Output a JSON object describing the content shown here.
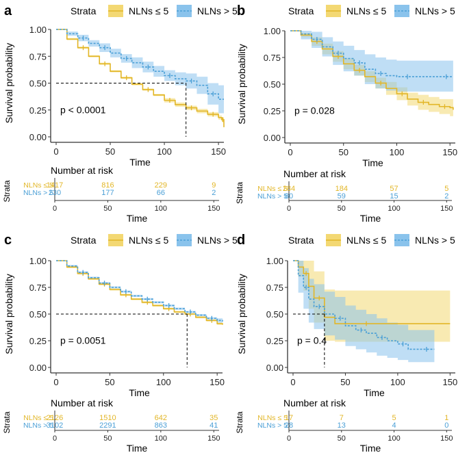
{
  "legend": {
    "title": "Strata",
    "label_a": "NLNs ≤ 5",
    "label_b": "NLNs > 5"
  },
  "labels": {
    "y_axis": "Survival probability",
    "x_axis": "Time",
    "risk_title": "Number at risk",
    "strata": "Strata"
  },
  "colors": {
    "a": "#E2B627",
    "b": "#4A9FD6",
    "fill_a": "#F3D873",
    "fill_b": "#8AC3EC",
    "axis": "#333333"
  },
  "chart_data": [
    {
      "panel": "a",
      "type": "line",
      "pvalue": "p < 0.0001",
      "xlim": [
        0,
        155
      ],
      "ylim": [
        0,
        1
      ],
      "x_ticks": [
        0,
        50,
        100,
        150
      ],
      "y_ticks": [
        "0.00",
        "0.25",
        "0.50",
        "0.75",
        "1.00"
      ],
      "median": {
        "value": 0.5,
        "times": [
          120
        ]
      },
      "series": [
        {
          "name": "NLNs ≤ 5",
          "x": [
            0,
            10,
            20,
            30,
            40,
            50,
            60,
            70,
            80,
            90,
            100,
            110,
            120,
            130,
            140,
            150,
            153,
            155
          ],
          "y": [
            1.0,
            0.91,
            0.83,
            0.75,
            0.68,
            0.61,
            0.55,
            0.49,
            0.44,
            0.39,
            0.34,
            0.3,
            0.27,
            0.24,
            0.21,
            0.18,
            0.16,
            0.09
          ],
          "lower": [
            1.0,
            0.9,
            0.82,
            0.74,
            0.67,
            0.6,
            0.54,
            0.48,
            0.43,
            0.38,
            0.32,
            0.28,
            0.25,
            0.22,
            0.19,
            0.16,
            0.14,
            0.07
          ],
          "upper": [
            1.0,
            0.92,
            0.84,
            0.76,
            0.69,
            0.62,
            0.56,
            0.5,
            0.45,
            0.4,
            0.36,
            0.32,
            0.29,
            0.26,
            0.23,
            0.2,
            0.18,
            0.11
          ]
        },
        {
          "name": "NLNs > 5",
          "x": [
            0,
            10,
            20,
            30,
            40,
            50,
            60,
            70,
            80,
            90,
            100,
            110,
            120,
            130,
            140,
            150,
            155
          ],
          "y": [
            1.0,
            0.96,
            0.92,
            0.87,
            0.83,
            0.78,
            0.73,
            0.69,
            0.65,
            0.61,
            0.57,
            0.54,
            0.52,
            0.48,
            0.4,
            0.35,
            0.35
          ],
          "lower": [
            1.0,
            0.94,
            0.89,
            0.84,
            0.79,
            0.74,
            0.69,
            0.64,
            0.6,
            0.56,
            0.52,
            0.48,
            0.45,
            0.4,
            0.3,
            0.22,
            0.22
          ],
          "upper": [
            1.0,
            0.98,
            0.95,
            0.9,
            0.87,
            0.82,
            0.77,
            0.74,
            0.7,
            0.66,
            0.62,
            0.6,
            0.59,
            0.56,
            0.5,
            0.48,
            0.48
          ]
        }
      ],
      "risk": {
        "times": [
          0,
          50,
          100,
          150
        ],
        "rows": [
          {
            "name": "NLNs ≤ 5",
            "values": [
              "1417",
              "816",
              "229",
              "9"
            ]
          },
          {
            "name": "NLNs > 5",
            "values": [
              "230",
              "177",
              "66",
              "2"
            ]
          }
        ]
      }
    },
    {
      "panel": "b",
      "type": "line",
      "pvalue": "p = 0.028",
      "xlim": [
        0,
        155
      ],
      "ylim": [
        0,
        1
      ],
      "x_ticks": [
        0,
        50,
        100,
        150
      ],
      "y_ticks": [
        "0.00",
        "0.25",
        "0.50",
        "0.75",
        "1.00"
      ],
      "median": null,
      "series": [
        {
          "name": "NLNs ≤ 5",
          "x": [
            0,
            10,
            20,
            30,
            40,
            50,
            60,
            70,
            80,
            90,
            100,
            110,
            120,
            130,
            140,
            150,
            153
          ],
          "y": [
            1.0,
            0.96,
            0.9,
            0.83,
            0.76,
            0.69,
            0.63,
            0.57,
            0.51,
            0.46,
            0.41,
            0.36,
            0.33,
            0.31,
            0.29,
            0.28,
            0.26
          ],
          "lower": [
            1.0,
            0.94,
            0.86,
            0.78,
            0.71,
            0.64,
            0.58,
            0.52,
            0.46,
            0.4,
            0.35,
            0.3,
            0.26,
            0.24,
            0.22,
            0.2,
            0.18
          ],
          "upper": [
            1.0,
            0.98,
            0.94,
            0.88,
            0.81,
            0.74,
            0.68,
            0.62,
            0.56,
            0.52,
            0.47,
            0.42,
            0.4,
            0.38,
            0.36,
            0.36,
            0.34
          ]
        },
        {
          "name": "NLNs > 5",
          "x": [
            0,
            10,
            20,
            30,
            40,
            50,
            60,
            70,
            80,
            90,
            100,
            120,
            140,
            153
          ],
          "y": [
            1.0,
            0.97,
            0.92,
            0.85,
            0.79,
            0.74,
            0.7,
            0.64,
            0.6,
            0.58,
            0.57,
            0.57,
            0.57,
            0.57
          ],
          "lower": [
            1.0,
            0.92,
            0.84,
            0.76,
            0.68,
            0.62,
            0.58,
            0.5,
            0.46,
            0.44,
            0.43,
            0.43,
            0.43,
            0.43
          ],
          "upper": [
            1.0,
            1.0,
            0.99,
            0.94,
            0.9,
            0.86,
            0.82,
            0.78,
            0.75,
            0.73,
            0.72,
            0.72,
            0.72,
            0.72
          ]
        }
      ],
      "risk": {
        "times": [
          0,
          50,
          100,
          150
        ],
        "rows": [
          {
            "name": "NLNs ≤ 5",
            "values": [
              "284",
              "184",
              "57",
              "5"
            ]
          },
          {
            "name": "NLNs > 5",
            "values": [
              "80",
              "59",
              "15",
              "2"
            ]
          }
        ]
      }
    },
    {
      "panel": "c",
      "type": "line",
      "pvalue": "p = 0.0051",
      "xlim": [
        0,
        155
      ],
      "ylim": [
        0,
        1
      ],
      "x_ticks": [
        0,
        50,
        100,
        150
      ],
      "y_ticks": [
        "0.00",
        "0.25",
        "0.50",
        "0.75",
        "1.00"
      ],
      "median": {
        "value": 0.5,
        "times": [
          122
        ]
      },
      "series": [
        {
          "name": "NLNs ≤ 5",
          "x": [
            0,
            10,
            20,
            30,
            40,
            50,
            60,
            70,
            80,
            90,
            100,
            110,
            120,
            130,
            140,
            150,
            155
          ],
          "y": [
            1.0,
            0.94,
            0.88,
            0.83,
            0.78,
            0.73,
            0.68,
            0.64,
            0.61,
            0.58,
            0.55,
            0.52,
            0.5,
            0.47,
            0.44,
            0.41,
            0.4
          ],
          "lower": [
            1.0,
            0.93,
            0.87,
            0.82,
            0.77,
            0.72,
            0.67,
            0.63,
            0.6,
            0.57,
            0.54,
            0.51,
            0.49,
            0.46,
            0.43,
            0.4,
            0.38
          ],
          "upper": [
            1.0,
            0.95,
            0.89,
            0.84,
            0.79,
            0.74,
            0.69,
            0.65,
            0.62,
            0.59,
            0.56,
            0.53,
            0.51,
            0.48,
            0.45,
            0.42,
            0.42
          ]
        },
        {
          "name": "NLNs > 5",
          "x": [
            0,
            10,
            20,
            30,
            40,
            50,
            60,
            70,
            80,
            90,
            100,
            110,
            120,
            130,
            140,
            150,
            155
          ],
          "y": [
            1.0,
            0.95,
            0.89,
            0.84,
            0.79,
            0.75,
            0.71,
            0.67,
            0.64,
            0.61,
            0.58,
            0.55,
            0.52,
            0.49,
            0.46,
            0.44,
            0.43
          ],
          "lower": [
            1.0,
            0.94,
            0.88,
            0.83,
            0.78,
            0.74,
            0.7,
            0.66,
            0.63,
            0.6,
            0.57,
            0.54,
            0.51,
            0.48,
            0.45,
            0.42,
            0.41
          ],
          "upper": [
            1.0,
            0.96,
            0.9,
            0.85,
            0.8,
            0.76,
            0.72,
            0.68,
            0.65,
            0.62,
            0.59,
            0.56,
            0.53,
            0.5,
            0.47,
            0.46,
            0.45
          ]
        }
      ],
      "risk": {
        "times": [
          0,
          50,
          100,
          150
        ],
        "rows": [
          {
            "name": "NLNs ≤ 5",
            "values": [
              "2126",
              "1510",
              "642",
              "35"
            ]
          },
          {
            "name": "NLNs > 5",
            "values": [
              "3102",
              "2291",
              "863",
              "41"
            ]
          }
        ]
      }
    },
    {
      "panel": "d",
      "type": "line",
      "pvalue": "p = 0.4",
      "xlim": [
        0,
        155
      ],
      "ylim": [
        0,
        1
      ],
      "x_ticks": [
        0,
        50,
        100,
        150
      ],
      "y_ticks": [
        "0.00",
        "0.25",
        "0.50",
        "0.75",
        "1.00"
      ],
      "median": {
        "value": 0.5,
        "times": [
          30
        ]
      },
      "series": [
        {
          "name": "NLNs ≤ 5",
          "x": [
            0,
            5,
            10,
            15,
            20,
            30,
            40,
            100,
            150
          ],
          "y": [
            1.0,
            0.94,
            0.88,
            0.76,
            0.65,
            0.47,
            0.41,
            0.41,
            0.41
          ],
          "lower": [
            1.0,
            0.85,
            0.72,
            0.55,
            0.42,
            0.25,
            0.24,
            0.24,
            0.24
          ],
          "upper": [
            1.0,
            1.0,
            1.0,
            1.0,
            0.9,
            0.73,
            0.72,
            0.72,
            0.72
          ]
        },
        {
          "name": "NLNs > 5",
          "x": [
            0,
            5,
            10,
            15,
            20,
            30,
            40,
            50,
            60,
            70,
            80,
            90,
            100,
            110,
            120,
            135
          ],
          "y": [
            1.0,
            0.86,
            0.75,
            0.64,
            0.57,
            0.5,
            0.46,
            0.39,
            0.35,
            0.32,
            0.28,
            0.25,
            0.22,
            0.17,
            0.17,
            0.17
          ],
          "lower": [
            1.0,
            0.7,
            0.55,
            0.42,
            0.36,
            0.3,
            0.26,
            0.2,
            0.17,
            0.14,
            0.11,
            0.09,
            0.07,
            0.05,
            0.05,
            0.05
          ],
          "upper": [
            1.0,
            1.0,
            0.93,
            0.83,
            0.78,
            0.71,
            0.66,
            0.58,
            0.54,
            0.5,
            0.46,
            0.42,
            0.4,
            0.35,
            0.35,
            0.35
          ]
        }
      ],
      "risk": {
        "times": [
          0,
          50,
          100,
          150
        ],
        "rows": [
          {
            "name": "NLNs ≤ 5",
            "values": [
              "17",
              "7",
              "5",
              "1"
            ]
          },
          {
            "name": "NLNs > 5",
            "values": [
              "28",
              "13",
              "4",
              "0"
            ]
          }
        ]
      }
    }
  ]
}
